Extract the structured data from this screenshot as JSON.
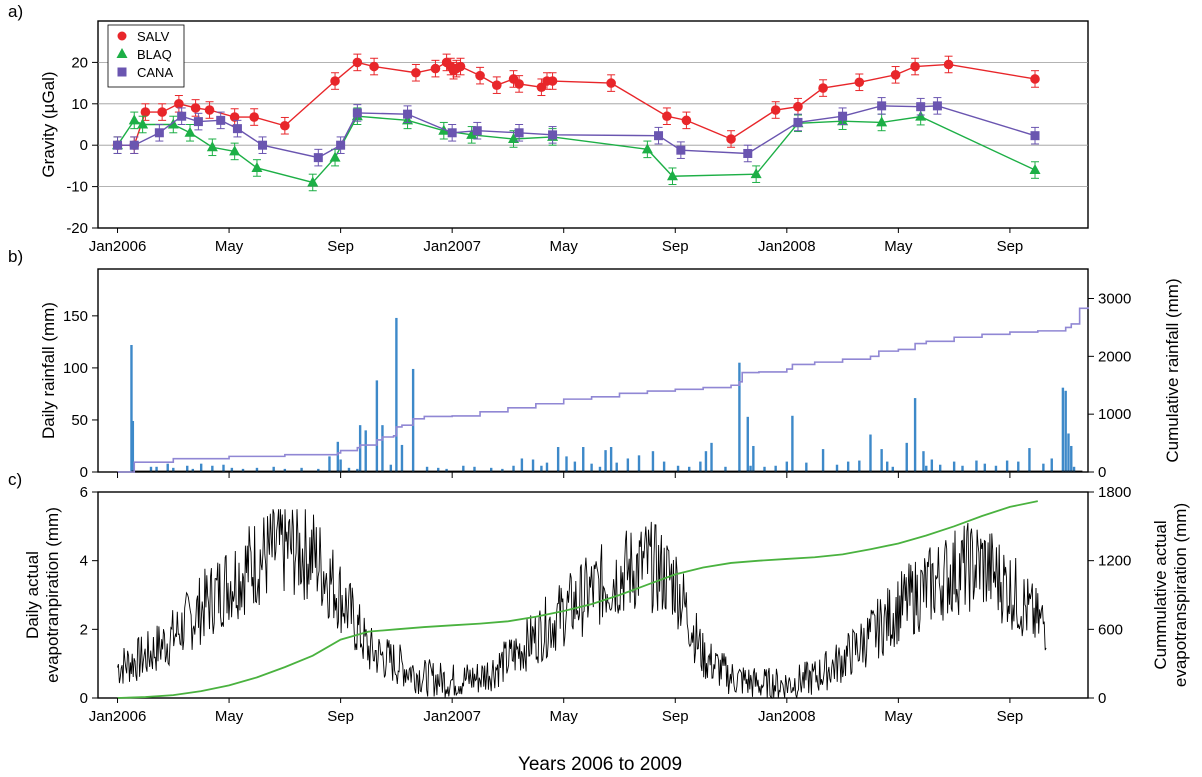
{
  "figure": {
    "xlabel": "Years 2006 to 2009",
    "x_tick_labels": [
      "Jan2006",
      "May",
      "Sep",
      "Jan2007",
      "May",
      "Sep",
      "Jan2008",
      "May",
      "Sep"
    ],
    "x_tick_months": [
      0,
      4,
      8,
      12,
      16,
      20,
      24,
      28,
      32
    ]
  },
  "chart_data": [
    {
      "panel": "a)",
      "type": "line",
      "ylabel": "Gravity (µGal)",
      "ylim": [
        -20,
        30
      ],
      "yticks": [
        -20,
        -10,
        0,
        10,
        20
      ],
      "xlim_months": [
        -0.7,
        34.8
      ],
      "grid": "horizontal",
      "legend_position": "top-left",
      "series": [
        {
          "name": "SALV",
          "color": "#e8262a",
          "marker": "circle",
          "x": [
            0,
            0.6,
            1.0,
            1.6,
            2.2,
            2.8,
            3.3,
            4.2,
            4.9,
            6.0,
            7.8,
            8.6,
            9.2,
            10.7,
            11.4,
            11.8,
            11.95,
            12.05,
            12.15,
            12.3,
            13.0,
            13.6,
            14.2,
            14.4,
            15.2,
            15.4,
            15.6,
            17.7,
            19.7,
            20.4,
            22.0,
            23.6,
            24.4,
            25.3,
            26.6,
            27.9,
            28.6,
            29.8,
            32.9
          ],
          "y": [
            0,
            0,
            8,
            8,
            10,
            9,
            8.5,
            6.8,
            6.8,
            4.7,
            15.5,
            20,
            19,
            17.5,
            18.5,
            20,
            19,
            18,
            18.5,
            19,
            16.8,
            14.5,
            16,
            14.8,
            14,
            15.5,
            15.5,
            15,
            7,
            6,
            1.5,
            8.5,
            9.3,
            13.8,
            15.2,
            17,
            19,
            19.5,
            16
          ],
          "error": 2
        },
        {
          "name": "BLAQ",
          "color": "#1daf46",
          "marker": "triangle",
          "x": [
            0,
            0.6,
            0.9,
            2.0,
            2.6,
            3.4,
            4.2,
            5.0,
            7.0,
            7.8,
            8.6,
            10.4,
            11.7,
            12.7,
            14.2,
            15.6,
            19.0,
            19.9,
            22.9,
            24.4,
            26.0,
            27.4,
            28.8,
            32.9
          ],
          "y": [
            0,
            6,
            5,
            5,
            3,
            -0.5,
            -1.5,
            -5.5,
            -9,
            -3,
            7,
            6,
            3.5,
            2.5,
            1.5,
            2,
            -1,
            -7.5,
            -7,
            5.3,
            5.8,
            5.5,
            6.9,
            -6
          ],
          "error": 2
        },
        {
          "name": "CANA",
          "color": "#6a55b0",
          "marker": "square",
          "x": [
            0,
            0.6,
            1.5,
            2.3,
            2.9,
            3.7,
            4.3,
            5.2,
            7.2,
            8.0,
            8.6,
            10.4,
            12.0,
            12.9,
            14.4,
            15.6,
            19.4,
            20.2,
            22.6,
            24.4,
            26.0,
            27.4,
            28.8,
            29.4,
            32.9
          ],
          "y": [
            0,
            0,
            3,
            7,
            5.7,
            6,
            4,
            0,
            -3,
            0,
            7.8,
            7.5,
            3,
            3.5,
            3,
            2.5,
            2.3,
            -1.2,
            -2,
            5.5,
            7,
            9.5,
            9.3,
            9.5,
            2.3
          ],
          "error": 2
        }
      ]
    },
    {
      "panel": "b)",
      "type": "bar",
      "ylabel": "Daily rainfall (mm)",
      "ylabel_right": "Cumulative rainfall (mm)",
      "ylim": [
        0,
        195
      ],
      "yticks": [
        0,
        50,
        100,
        150
      ],
      "ylim_right": [
        0,
        3510
      ],
      "yticks_right": [
        0,
        1000,
        2000,
        3000
      ],
      "bar_color": "#3d89c9",
      "line_color": "#9087d4",
      "rain_bars": {
        "month": [
          0.5,
          0.55,
          1.2,
          1.4,
          1.8,
          2.0,
          2.5,
          2.7,
          3.0,
          3.4,
          3.8,
          4.1,
          4.5,
          5.0,
          5.6,
          6.0,
          6.6,
          7.2,
          7.6,
          7.9,
          8.0,
          8.3,
          8.6,
          8.7,
          8.9,
          9.3,
          9.5,
          9.8,
          10.0,
          10.2,
          10.6,
          11.1,
          11.5,
          11.8,
          12.4,
          12.8,
          13.4,
          13.8,
          14.2,
          14.5,
          14.9,
          15.2,
          15.4,
          15.8,
          16.1,
          16.4,
          16.7,
          17.0,
          17.3,
          17.5,
          17.7,
          17.9,
          18.3,
          18.7,
          19.2,
          19.6,
          20.1,
          20.5,
          20.9,
          21.1,
          21.3,
          21.8,
          22.3,
          22.6,
          22.7,
          22.8,
          23.2,
          23.6,
          24.0,
          24.2,
          24.7,
          25.3,
          25.8,
          26.2,
          26.6,
          27.0,
          27.4,
          27.6,
          27.8,
          28.3,
          28.6,
          28.9,
          29.0,
          29.2,
          29.5,
          30.0,
          30.3,
          30.8,
          31.1,
          31.5,
          31.9,
          32.3,
          32.7,
          33.2,
          33.5,
          33.9,
          34.0,
          34.1,
          34.2,
          34.3
        ],
        "mm": [
          122,
          49,
          5,
          5,
          8,
          4,
          6,
          3,
          8,
          6,
          7,
          4,
          3,
          4,
          5,
          3,
          4,
          3,
          15,
          29,
          12,
          4,
          3,
          45,
          40,
          88,
          45,
          7,
          148,
          26,
          99,
          5,
          4,
          3,
          6,
          5,
          4,
          3,
          6,
          13,
          12,
          6,
          9,
          24,
          15,
          10,
          24,
          8,
          5,
          21,
          24,
          9,
          13,
          16,
          20,
          10,
          6,
          5,
          10,
          20,
          28,
          5,
          105,
          53,
          6,
          25,
          5,
          6,
          10,
          54,
          9,
          22,
          7,
          10,
          11,
          36,
          22,
          10,
          5,
          28,
          71,
          20,
          6,
          12,
          7,
          10,
          6,
          11,
          8,
          6,
          11,
          10,
          23,
          8,
          13,
          81,
          78,
          37,
          25,
          5
        ]
      },
      "cumulative_curve": {
        "month": [
          0,
          0.5,
          0.6,
          2.0,
          4.0,
          6.0,
          7.9,
          8.0,
          8.6,
          8.7,
          9.3,
          9.5,
          9.9,
          10.0,
          10.2,
          10.6,
          11.0,
          12.0,
          13.0,
          14.0,
          15.0,
          16.0,
          17.0,
          18.0,
          19.0,
          20.0,
          21.0,
          22.0,
          22.3,
          22.4,
          23.0,
          24.0,
          24.2,
          25.0,
          26.0,
          27.0,
          27.3,
          28.0,
          28.6,
          29.0,
          30.0,
          31.0,
          32.0,
          33.0,
          34.0,
          34.2,
          34.5,
          34.8
        ],
        "mm": [
          0,
          0,
          170,
          230,
          270,
          300,
          330,
          370,
          420,
          465,
          555,
          605,
          625,
          780,
          810,
          920,
          960,
          970,
          1040,
          1110,
          1180,
          1260,
          1300,
          1360,
          1400,
          1430,
          1460,
          1500,
          1560,
          1720,
          1730,
          1780,
          1860,
          1900,
          1950,
          2000,
          2090,
          2120,
          2220,
          2260,
          2330,
          2380,
          2420,
          2440,
          2500,
          2560,
          2830,
          2850
        ]
      }
    },
    {
      "panel": "c)",
      "type": "line",
      "ylabel_lines": [
        "Daily actual",
        "evapotranpiration (mm)"
      ],
      "ylabel_right_lines": [
        "Cummulative actual",
        "evapotranspiration (mm)"
      ],
      "ylim": [
        0,
        6
      ],
      "yticks": [
        0,
        2,
        4,
        6
      ],
      "ylim_right": [
        0,
        1800
      ],
      "yticks_right": [
        0,
        600,
        1200,
        1800
      ],
      "daily_color": "#000000",
      "cumulative_color": "#4ab23f",
      "daily_envelope": {
        "month": [
          0,
          1,
          2,
          3,
          4,
          5,
          6,
          7,
          8,
          9,
          10,
          11,
          12,
          13,
          14,
          15,
          16,
          17,
          18,
          19,
          20,
          21,
          22,
          23,
          24,
          25,
          26,
          27,
          28,
          29,
          30,
          31,
          32,
          33
        ],
        "mm": [
          0.9,
          1.2,
          1.8,
          2.6,
          3.4,
          4.0,
          4.4,
          4.2,
          3.0,
          1.4,
          1.0,
          0.6,
          0.5,
          0.6,
          1.1,
          1.8,
          2.5,
          3.1,
          3.6,
          3.9,
          3.4,
          1.2,
          0.6,
          0.4,
          0.4,
          0.6,
          1.1,
          1.8,
          2.6,
          3.2,
          3.7,
          3.9,
          3.2,
          2.2
        ],
        "variability": 1.0
      },
      "cumulative_curve": {
        "month": [
          0,
          1,
          2,
          3,
          4,
          5,
          6,
          7,
          8,
          9,
          10,
          11,
          12,
          13,
          14,
          15,
          16,
          17,
          18,
          19,
          20,
          21,
          22,
          23,
          24,
          25,
          26,
          27,
          28,
          29,
          30,
          31,
          32,
          33
        ],
        "mm": [
          0,
          8,
          25,
          60,
          110,
          180,
          270,
          370,
          510,
          580,
          600,
          620,
          635,
          650,
          670,
          710,
          760,
          820,
          900,
          990,
          1080,
          1140,
          1180,
          1200,
          1215,
          1230,
          1255,
          1300,
          1350,
          1420,
          1500,
          1590,
          1670,
          1720
        ]
      }
    }
  ]
}
